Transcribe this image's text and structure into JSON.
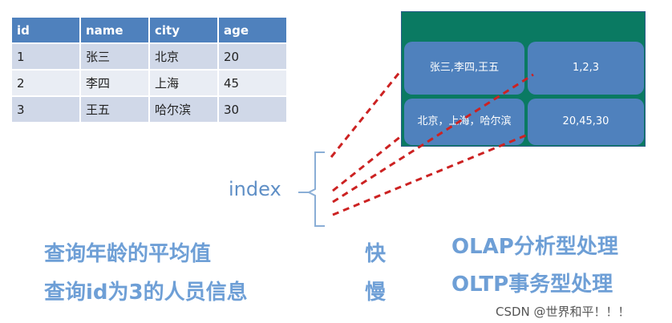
{
  "table": {
    "headers": [
      "id",
      "name",
      "city",
      "age"
    ],
    "rows": [
      [
        "1",
        "张三",
        "北京",
        "20"
      ],
      [
        "2",
        "李四",
        "上海",
        "45"
      ],
      [
        "3",
        "王五",
        "哈尔滨",
        "30"
      ]
    ]
  },
  "column_store": {
    "names": "张三,李四,王五",
    "ids": "1,2,3",
    "cities": "北京，上海，哈尔滨",
    "ages": "20,45,30"
  },
  "index_label": "index",
  "queries": [
    {
      "text": "查询年龄的平均值",
      "speed": "快",
      "type": "OLAP分析型处理"
    },
    {
      "text": "查询id为3的人员信息",
      "speed": "慢",
      "type": "OLTP事务型处理"
    }
  ],
  "watermark": "CSDN @世界和平！！！",
  "colors": {
    "header": "#4f81bd",
    "box": "#0a7a62",
    "line": "#cc2222",
    "text": "#6e9fd6"
  }
}
